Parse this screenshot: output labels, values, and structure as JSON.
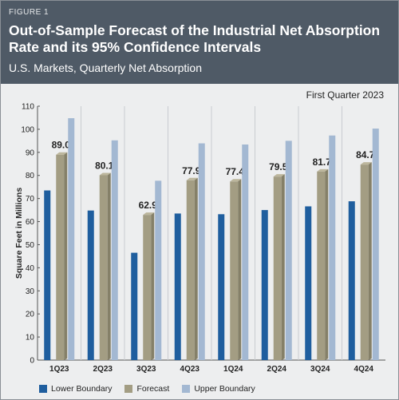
{
  "header": {
    "figure_label": "FIGURE 1",
    "title": "Out-of-Sample Forecast of the Industrial Net Absorption Rate and its 95% Confidence Intervals",
    "subtitle": "U.S. Markets, Quarterly Net Absorption",
    "period": "First Quarter 2023"
  },
  "colors": {
    "header_bg": "#4f5a66",
    "lower": "#1f5e9e",
    "forecast": "#a39d83",
    "upper": "#a3b8d2"
  },
  "chart_data": {
    "type": "bar",
    "title": "Out-of-Sample Forecast of the Industrial Net Absorption Rate and its 95% Confidence Intervals",
    "subtitle": "U.S. Markets, Quarterly Net Absorption",
    "xlabel": "",
    "ylabel": "Square Feet in Millions",
    "ylim": [
      0,
      110
    ],
    "yticks": [
      0,
      10,
      20,
      30,
      40,
      50,
      60,
      70,
      80,
      90,
      100,
      110
    ],
    "categories": [
      "1Q23",
      "2Q23",
      "3Q23",
      "4Q23",
      "1Q24",
      "2Q24",
      "3Q24",
      "4Q24"
    ],
    "series": [
      {
        "name": "Lower Boundary",
        "color": "#1f5e9e",
        "values": [
          73.5,
          64.8,
          46.5,
          63.5,
          63.2,
          65.0,
          66.6,
          68.8
        ]
      },
      {
        "name": "Forecast",
        "color": "#a39d83",
        "values": [
          89.0,
          80.1,
          62.9,
          77.9,
          77.4,
          79.5,
          81.7,
          84.7
        ]
      },
      {
        "name": "Upper Boundary",
        "color": "#a3b8d2",
        "values": [
          104.8,
          95.2,
          77.7,
          93.9,
          93.4,
          95.0,
          97.3,
          100.3
        ]
      }
    ],
    "data_labels": [
      "89.0",
      "80.1",
      "62.9",
      "77.9",
      "77.4",
      "79.5",
      "81.7",
      "84.7"
    ],
    "grid": false,
    "legend_position": "bottom"
  }
}
